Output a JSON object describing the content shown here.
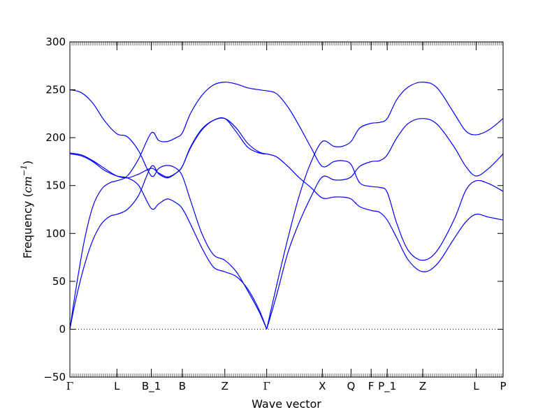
{
  "chart_data": {
    "type": "line",
    "title": "",
    "xlabel": "Wave vector",
    "ylabel_prefix": "Frequency (",
    "ylabel_unit_base": "cm",
    "ylabel_unit_exp": "−1",
    "ylabel_suffix": ")",
    "ylim": [
      -50,
      300
    ],
    "yticks": [
      -50,
      0,
      50,
      100,
      150,
      200,
      250,
      300
    ],
    "ytick_labels": [
      "−50",
      "0",
      "50",
      "100",
      "150",
      "200",
      "250",
      "300"
    ],
    "xlim": [
      0,
      7.55
    ],
    "kpoints": [
      {
        "label": "Γ",
        "x": 0
      },
      {
        "label": "L",
        "x": 0.82
      },
      {
        "label": "B_1",
        "x": 1.42
      },
      {
        "label": "B",
        "x": 1.96
      },
      {
        "label": "Z",
        "x": 2.7
      },
      {
        "label": "Γ",
        "x": 3.43
      },
      {
        "label": "X",
        "x": 4.4
      },
      {
        "label": "Q",
        "x": 4.9
      },
      {
        "label": "F",
        "x": 5.25
      },
      {
        "label": "P_1",
        "x": 5.53
      },
      {
        "label": "Z",
        "x": 6.15
      },
      {
        "label": "L",
        "x": 7.08
      },
      {
        "label": "P",
        "x": 7.55
      }
    ],
    "zero_line": true,
    "line_color": "#0000ff",
    "zero_line_color": "#000000",
    "series": [
      {
        "x": [
          0,
          0.1,
          0.25,
          0.4,
          0.55,
          0.7,
          0.82,
          1.0,
          1.2,
          1.42,
          1.55,
          1.7,
          1.85,
          1.96,
          2.1,
          2.3,
          2.5,
          2.7,
          2.9,
          3.1,
          3.3,
          3.43
        ],
        "y": [
          0,
          30,
          66,
          93,
          110,
          118,
          120,
          125,
          140,
          170,
          162,
          158,
          163,
          170,
          189,
          208,
          218,
          220,
          210,
          194,
          185,
          183
        ]
      },
      {
        "x": [
          0,
          0.1,
          0.25,
          0.4,
          0.55,
          0.7,
          0.82,
          1.0,
          1.2,
          1.42,
          1.55,
          1.7,
          1.85,
          1.96,
          2.1,
          2.3,
          2.5,
          2.7,
          2.9,
          3.1,
          3.3,
          3.43
        ],
        "y": [
          0,
          40,
          92,
          128,
          146,
          153,
          155,
          160,
          178,
          205,
          197,
          196,
          200,
          205,
          225,
          244,
          255,
          258,
          256,
          252,
          250,
          249
        ]
      },
      {
        "x": [
          0,
          0.2,
          0.4,
          0.6,
          0.82,
          1.0,
          1.2,
          1.42,
          1.55,
          1.7,
          1.85,
          1.96,
          2.1,
          2.3,
          2.5,
          2.7,
          2.9,
          3.1,
          3.3,
          3.43
        ],
        "y": [
          183,
          181,
          175,
          166,
          160,
          158,
          150,
          126,
          131,
          136,
          132,
          126,
          110,
          85,
          65,
          60,
          55,
          42,
          20,
          0
        ]
      },
      {
        "x": [
          0,
          0.2,
          0.4,
          0.6,
          0.82,
          1.0,
          1.2,
          1.42,
          1.55,
          1.7,
          1.85,
          1.96,
          2.1,
          2.3,
          2.5,
          2.7,
          2.9,
          3.1,
          3.3,
          3.43
        ],
        "y": [
          250,
          247,
          236,
          218,
          204,
          201,
          186,
          160,
          168,
          171,
          168,
          160,
          135,
          100,
          78,
          72,
          60,
          40,
          18,
          0
        ]
      },
      {
        "x": [
          0,
          0.2,
          0.4,
          0.6,
          0.82,
          1.0,
          1.2,
          1.42,
          1.55,
          1.7,
          1.85,
          1.96,
          2.1,
          2.3,
          2.5,
          2.7,
          2.9,
          3.1,
          3.3,
          3.43
        ],
        "y": [
          184,
          182,
          176,
          168,
          160,
          158,
          162,
          168,
          163,
          159,
          163,
          170,
          190,
          209,
          218,
          220,
          206,
          190,
          184,
          183
        ]
      },
      {
        "x": [
          3.43,
          3.6,
          3.8,
          4.0,
          4.2,
          4.4,
          4.6,
          4.75,
          4.9,
          5.05,
          5.25,
          5.4,
          5.53,
          5.7,
          5.9,
          6.15,
          6.4,
          6.7,
          6.9,
          7.08,
          7.3,
          7.55
        ],
        "y": [
          0,
          35,
          80,
          112,
          138,
          159,
          156,
          156,
          159,
          170,
          175,
          176,
          182,
          200,
          215,
          220,
          214,
          190,
          170,
          160,
          168,
          183
        ]
      },
      {
        "x": [
          3.43,
          3.6,
          3.8,
          4.0,
          4.2,
          4.4,
          4.6,
          4.75,
          4.9,
          5.05,
          5.25,
          5.4,
          5.53,
          5.7,
          5.9,
          6.15,
          6.4,
          6.7,
          6.9,
          7.08,
          7.3,
          7.55
        ],
        "y": [
          0,
          45,
          95,
          140,
          174,
          196,
          191,
          191,
          196,
          210,
          215,
          216,
          220,
          240,
          253,
          258,
          252,
          225,
          207,
          203,
          208,
          220
        ]
      },
      {
        "x": [
          3.43,
          3.6,
          3.8,
          4.0,
          4.2,
          4.4,
          4.6,
          4.75,
          4.9,
          5.05,
          5.25,
          5.4,
          5.53,
          5.7,
          5.9,
          6.15,
          6.4,
          6.7,
          6.9,
          7.08,
          7.3,
          7.55
        ],
        "y": [
          183,
          180,
          170,
          158,
          148,
          137,
          138,
          138,
          136,
          128,
          124,
          122,
          114,
          95,
          72,
          60,
          68,
          95,
          112,
          120,
          117,
          114
        ]
      },
      {
        "x": [
          3.43,
          3.6,
          3.8,
          4.0,
          4.2,
          4.4,
          4.6,
          4.75,
          4.9,
          5.05,
          5.25,
          5.4,
          5.53,
          5.7,
          5.9,
          6.15,
          6.4,
          6.7,
          6.9,
          7.08,
          7.3,
          7.55
        ],
        "y": [
          249,
          246,
          232,
          212,
          190,
          170,
          175,
          176,
          172,
          153,
          149,
          148,
          143,
          110,
          82,
          72,
          82,
          115,
          145,
          155,
          152,
          144
        ]
      }
    ]
  }
}
